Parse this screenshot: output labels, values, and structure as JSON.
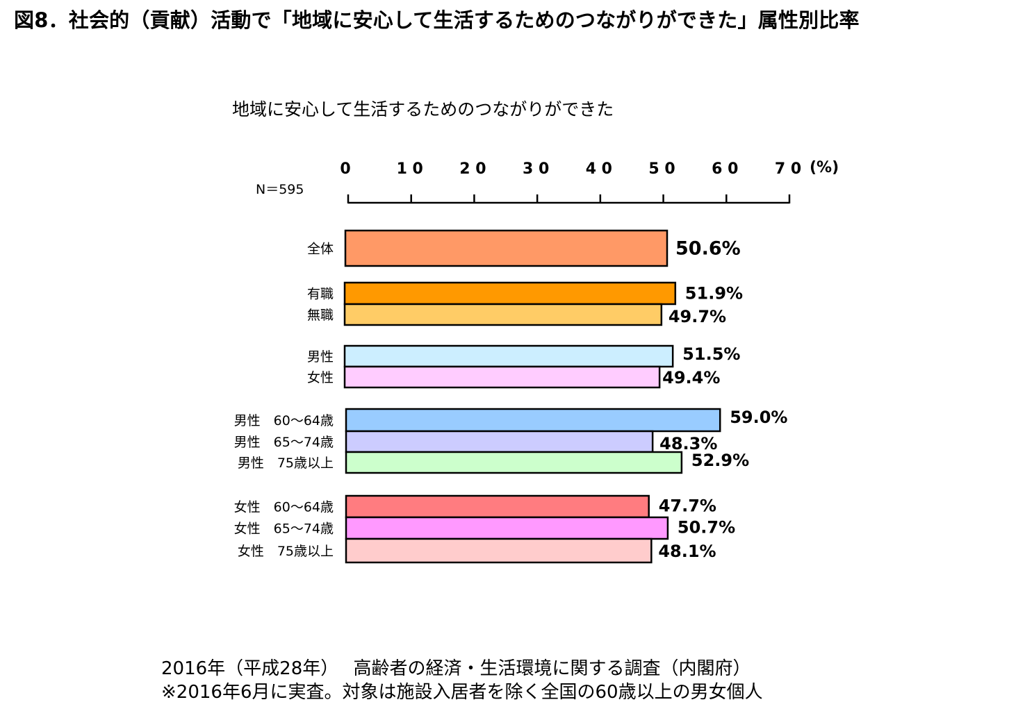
{
  "figure": {
    "title": "図8．社会的（貢献）活動で「地域に安心して生活するためのつながりができた」属性別比率",
    "subtitle": "地域に安心して生活するためのつながりができた",
    "n_label": "N＝595"
  },
  "footer": {
    "line1": "2016年（平成28年）　 高齢者の経済・生活環境に関する調査（内閣府）",
    "line2": "※2016年6月に実査。対象は施設入居者を除く全国の60歳以上の男女個人"
  },
  "chart_data": {
    "type": "bar",
    "orientation": "horizontal",
    "title": "地域に安心して生活するためのつながりができた",
    "xlim": [
      0,
      70
    ],
    "ticks": [
      0,
      10,
      20,
      30,
      40,
      50,
      60,
      70
    ],
    "tick_labels": [
      "0",
      "1 0",
      "2 0",
      "3 0",
      "4 0",
      "5 0",
      "6 0",
      "7 0"
    ],
    "unit_label": "(%)",
    "categories": [
      "全体",
      "有職",
      "無職",
      "男性",
      "女性",
      "男性　60～64歳",
      "男性　65～74歳",
      "男性　75歳以上",
      "女性　60～64歳",
      "女性　65～74歳",
      "女性　75歳以上"
    ],
    "values": [
      50.6,
      51.9,
      49.7,
      51.5,
      49.4,
      59.0,
      48.3,
      52.9,
      47.7,
      50.7,
      48.1
    ],
    "value_labels": [
      "50.6%",
      "51.9%",
      "49.7%",
      "51.5%",
      "49.4%",
      "59.0%",
      "48.3%",
      "52.9%",
      "47.7%",
      "50.7%",
      "48.1%"
    ],
    "colors": [
      "#FF9966",
      "#FF9900",
      "#FFCC66",
      "#CCEEFF",
      "#FFCCFF",
      "#99CCFF",
      "#CCCCFF",
      "#CCFFCC",
      "#FF7C80",
      "#FF99FF",
      "#FFCCCC"
    ],
    "groups": [
      [
        0
      ],
      [
        1,
        2
      ],
      [
        3,
        4
      ],
      [
        5,
        6,
        7
      ],
      [
        8,
        9,
        10
      ]
    ],
    "grid": false,
    "legend": "none"
  }
}
